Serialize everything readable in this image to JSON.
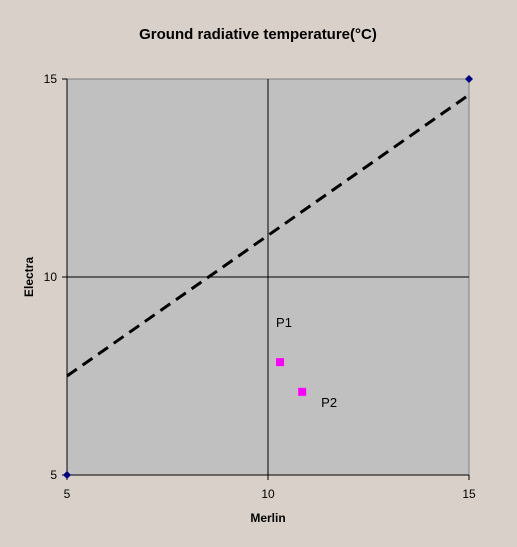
{
  "chart_data": {
    "type": "scatter",
    "title": "Ground radiative temperature(°C)",
    "xlabel": "Merlin",
    "ylabel": "Electra",
    "xlim": [
      5,
      15
    ],
    "ylim": [
      5,
      15
    ],
    "xticks": [
      "5",
      "10",
      "15"
    ],
    "yticks": [
      "5",
      "10",
      "15"
    ],
    "grid": true,
    "legend": "none",
    "plot_bg": "#c0c0c0",
    "page_bg": "#d9d0c9",
    "series": [
      {
        "kind": "markers",
        "marker": "diamond",
        "color": "#000080",
        "points": [
          {
            "x": 5,
            "y": 5
          },
          {
            "x": 15,
            "y": 15
          }
        ]
      },
      {
        "kind": "markers",
        "marker": "square",
        "color": "#ff00ff",
        "points": [
          {
            "x": 10.3,
            "y": 7.85,
            "label": "P1"
          },
          {
            "x": 10.85,
            "y": 7.1,
            "label": "P2"
          }
        ]
      },
      {
        "kind": "line",
        "style": "dashed",
        "color": "#000000",
        "points": [
          {
            "x": 5,
            "y": 7.5
          },
          {
            "x": 15,
            "y": 14.6
          }
        ]
      }
    ]
  }
}
